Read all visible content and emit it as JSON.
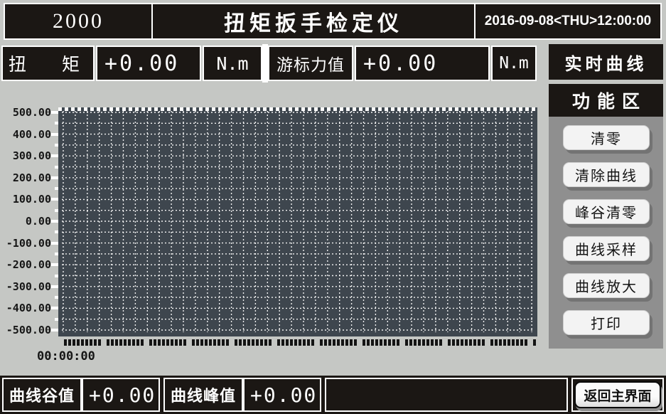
{
  "header": {
    "model": "2000",
    "title": "扭矩扳手检定仪",
    "datetime": "2016-09-08<THU>12:00:00"
  },
  "readouts": {
    "torque": {
      "label": "扭　　矩",
      "value": "+0.00",
      "unit": "N.m"
    },
    "cursor_force": {
      "label": "游标力值",
      "value": "+0.00",
      "unit": "N.m"
    }
  },
  "view_label": "实时曲线",
  "sidebar": {
    "title": "功能区",
    "buttons": [
      "清零",
      "清除曲线",
      "峰谷清零",
      "曲线采样",
      "曲线放大",
      "打印"
    ],
    "button_names": [
      "zero-button",
      "clear-curve-button",
      "peak-valley-zero-button",
      "curve-sample-button",
      "curve-zoom-button",
      "print-button"
    ]
  },
  "footer": {
    "valley_label": "曲线谷值",
    "valley_value": "+0.00",
    "peak_label": "曲线峰值",
    "peak_value": "+0.00",
    "return_button": "返回主界面"
  },
  "chart_data": {
    "type": "line",
    "title": "实时曲线",
    "x_start_tick": "00:00:00",
    "y_ticks": [
      "500.00",
      "400.00",
      "300.00",
      "200.00",
      "100.00",
      "0.00",
      "-100.00",
      "-200.00",
      "-300.00",
      "-400.00",
      "-500.00"
    ],
    "ylim": [
      -500,
      500
    ],
    "grid": {
      "on": true,
      "horizontal_divisions": 20,
      "vertical_divisions": 40,
      "style": "white dotted on dark panel"
    },
    "legend": "none",
    "series": [
      {
        "name": "实时曲线",
        "x": [],
        "y": []
      }
    ]
  },
  "colors": {
    "page_bg": "#c5c7c4",
    "box_bg": "#1b1714",
    "plot_bg": "#3e464e",
    "panel_bg": "#8f8f8f",
    "grid_line": "#f2f2f2",
    "text_light": "#ffffff",
    "text_dark": "#141414"
  }
}
